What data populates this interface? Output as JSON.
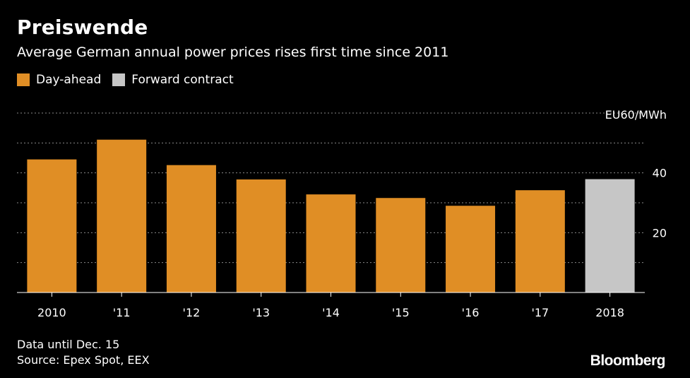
{
  "header": {
    "title": "Preiswende",
    "subtitle": "Average German annual power prices rises first time since 2011"
  },
  "legend": [
    {
      "label": "Day-ahead",
      "color": "#E08E25"
    },
    {
      "label": "Forward contract",
      "color": "#C6C6C6"
    }
  ],
  "chart_data": {
    "type": "bar",
    "title": "Preiswende",
    "subtitle": "Average German annual power prices rises first time since 2011",
    "categories": [
      "2010",
      "'11",
      "'12",
      "'13",
      "'14",
      "'15",
      "'16",
      "'17",
      "2018"
    ],
    "values": [
      44.5,
      51.1,
      42.6,
      37.8,
      32.8,
      31.6,
      29.0,
      34.2,
      37.9
    ],
    "series_type": [
      "Day-ahead",
      "Day-ahead",
      "Day-ahead",
      "Day-ahead",
      "Day-ahead",
      "Day-ahead",
      "Day-ahead",
      "Day-ahead",
      "Forward contract"
    ],
    "unit_label": "EU60/MWh",
    "ylim": [
      0,
      60
    ],
    "yticks": [
      0,
      10,
      20,
      30,
      40,
      50,
      60
    ],
    "ytick_labels": [
      {
        "value": 20,
        "label": "20"
      },
      {
        "value": 40,
        "label": "40"
      }
    ],
    "xlabel": "",
    "ylabel": "EU60/MWh",
    "grid": true,
    "legend_position": "top-left"
  },
  "footer": {
    "note": "Data until Dec. 15",
    "source": "Source: Epex Spot, EEX",
    "brand": "Bloomberg"
  }
}
